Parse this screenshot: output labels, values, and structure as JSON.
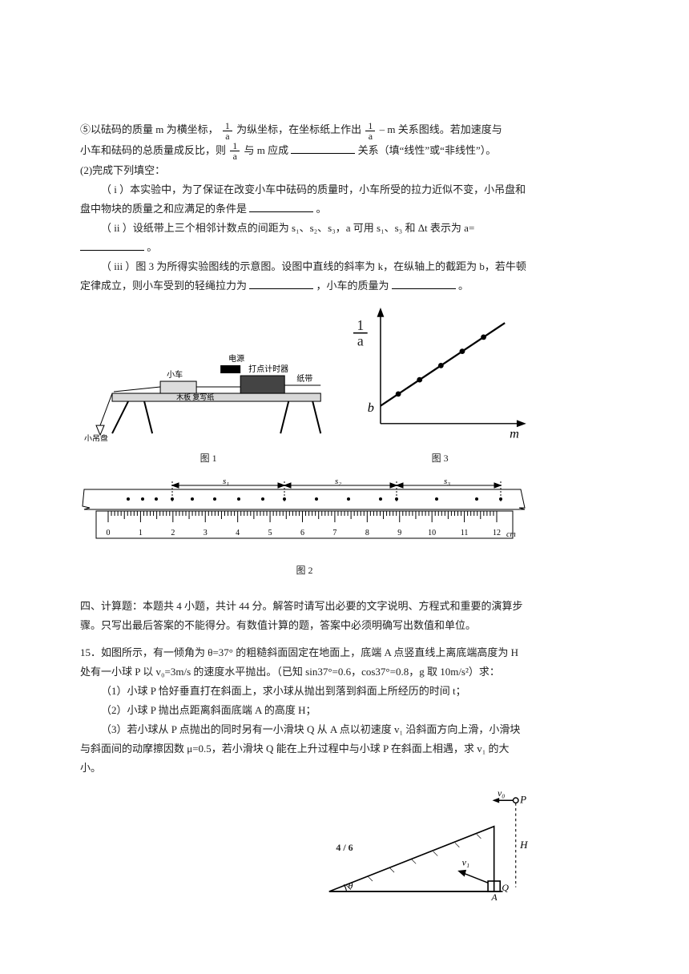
{
  "para_b": {
    "pre": "⑤以砝码的质量 m 为横坐标，",
    "frac1_num": "1",
    "frac1_den": "a",
    "mid1": "为纵坐标，在坐标纸上作出",
    "frac2_num": "1",
    "frac2_den": "a",
    "mid2": "– m 关系图线。若加速度与",
    "line2_pre": "小车和砝码的总质量成反比，则",
    "frac3_num": "1",
    "frac3_den": "a",
    "line2_mid": "与 m 应成",
    "line2_post": "关系（填“线性”或“非线性”）。"
  },
  "para_c": {
    "head": "(2)完成下列填空：",
    "i": "（ i ）本实验中，为了保证在改变小车中砝码的质量时，小车所受的拉力近似不变，小吊盘和盘中物块的质量之和应满足的条件是",
    "i_post": "。",
    "ii_pre": "（ ii ）设纸带上三个相邻计数点的间距为 s₁、s₂、s₃，a 可用 s₁、s₃ 和 Δt 表示为 a=",
    "ii_post": "。",
    "iii_pre": "（ iii ）图 3 为所得实验图线的示意图。设图中直线的斜率为 k，在纵轴上的截距为 b，若牛顿定律成立，则小车受到的轻绳拉力为",
    "iii_mid": "，小车的质量为",
    "iii_post": "。"
  },
  "fig1": {
    "labels": {
      "dianyuan": "电源",
      "xiaoche": "小车",
      "dadian": "打点计时器",
      "zhidai": "纸带",
      "muban": "木板  复写纸",
      "diaopan": "小吊盘"
    },
    "caption": "图 1"
  },
  "fig3": {
    "ylabel_num": "1",
    "ylabel_den": "a",
    "xlabel": "m",
    "intercept": "b",
    "caption": "图 3"
  },
  "ruler": {
    "ticks": [
      "0",
      "1",
      "2",
      "3",
      "4",
      "5",
      "6",
      "7",
      "8",
      "9",
      "10",
      "11",
      "12"
    ],
    "unit": "cm",
    "seg1": "s₁",
    "seg2": "s₂",
    "seg3": "s₃",
    "caption": "图 2"
  },
  "section4": {
    "title": "四、计算题：本题共 4 小题，共计 44 分。解答时请写出必要的文字说明、方程式和重要的演算步骤。只写出最后答案的不能得分。有数值计算的题，答案中必须明确写出数值和单位。"
  },
  "q15": {
    "l1": "15．如图所示，有一倾角为 θ=37° 的粗糙斜面固定在地面上，底端 A 点竖直线上离底端高度为 H 处有一小球 P 以 v₀=3m/s 的速度水平抛出。（已知 sin37°=0.6，cos37°=0.8，g 取 10m/s²）求：",
    "s1": "（1）小球 P 恰好垂直打在斜面上，求小球从抛出到落到斜面上所经历的时间 t；",
    "s2": "（2）小球 P 抛出点距离斜面底端 A 的高度 H；",
    "s3": "（3）若小球从 P 点抛出的同时另有一小滑块 Q 从 A 点以初速度 v₁ 沿斜面方向上滑，小滑块与斜面间的动摩擦因数 μ=0.5，若小滑块 Q 能在上升过程中与小球 P 在斜面上相遇，求 v₁ 的大小。"
  },
  "fig15": {
    "P": "P",
    "Q": "Q",
    "A": "A",
    "H": "H",
    "v0": "v₀",
    "v1": "v₁",
    "theta": "θ"
  },
  "footer": "4 / 6"
}
